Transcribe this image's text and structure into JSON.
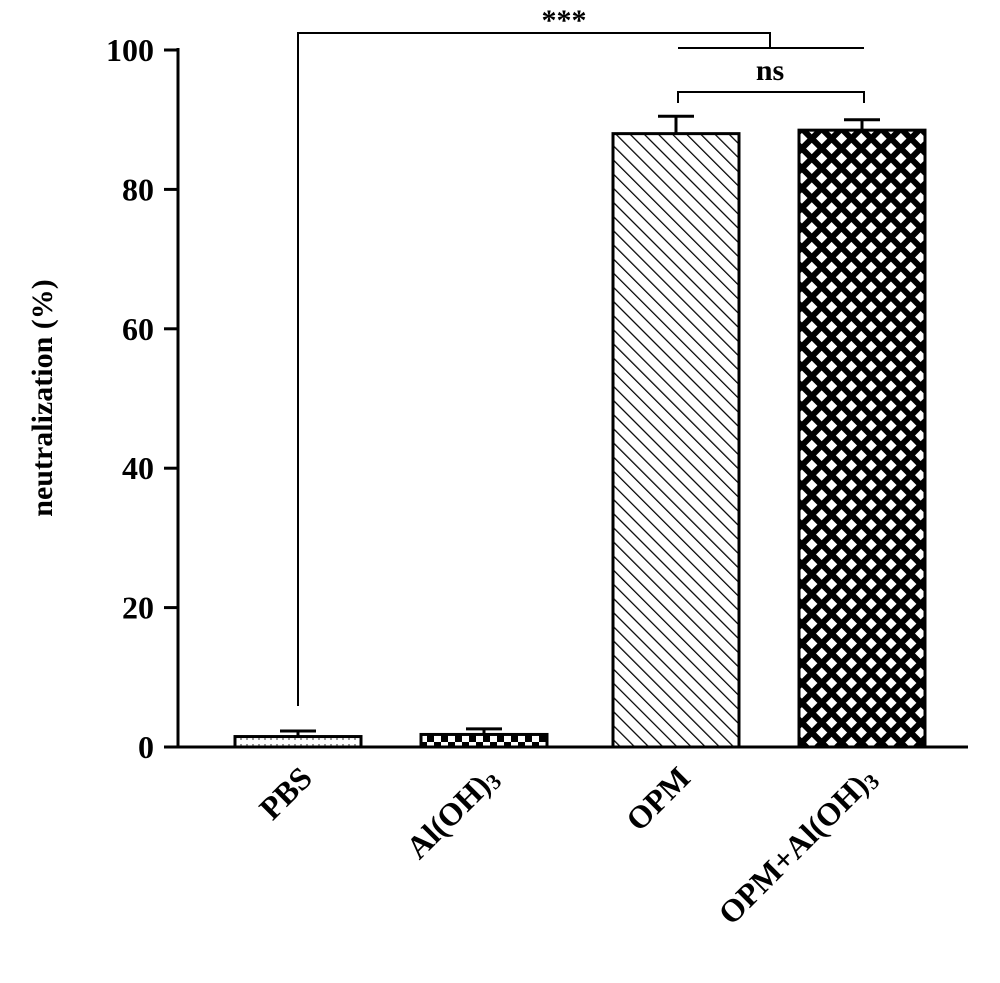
{
  "chart_data": {
    "type": "bar",
    "ylabel": "neutralization (%)",
    "xlabel": "",
    "ylim": [
      0,
      100
    ],
    "yticks": [
      0,
      20,
      40,
      60,
      80,
      100
    ],
    "grid": false,
    "categories": [
      "PBS",
      "Al(OH)3",
      "OPM",
      "OPM+Al(OH)3"
    ],
    "category_labels": [
      {
        "text": "PBS",
        "subscript": ""
      },
      {
        "text": "Al(OH)",
        "subscript": "3"
      },
      {
        "text": "OPM",
        "subscript": ""
      },
      {
        "text": "OPM+Al(OH)",
        "subscript": "3"
      }
    ],
    "values": [
      1.5,
      1.8,
      88,
      88.5
    ],
    "errors": [
      0.8,
      0.8,
      2.5,
      1.5
    ],
    "patterns": [
      "light-dots",
      "checker",
      "diagonal-hatch",
      "crosshatch"
    ],
    "annotations": [
      {
        "text": "***",
        "from": "PBS",
        "to": "OPM/OPM+Al(OH)3"
      },
      {
        "text": "ns",
        "from": "OPM",
        "to": "OPM+Al(OH)3"
      }
    ]
  }
}
